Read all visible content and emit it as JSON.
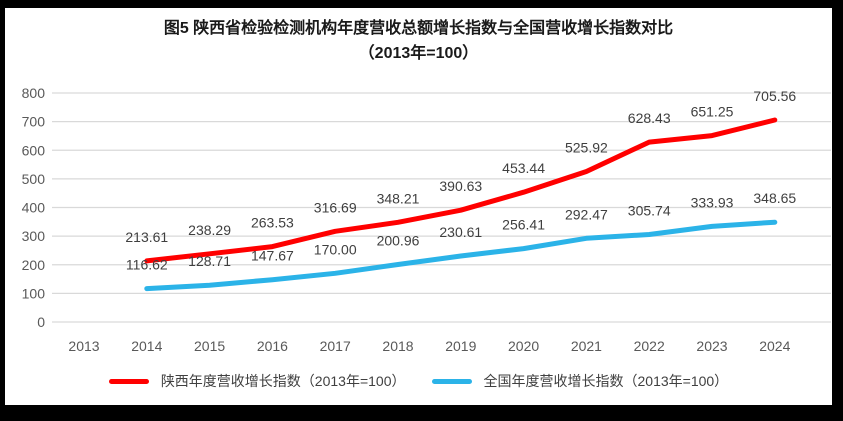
{
  "title": {
    "line1": "图5  陕西省检验检测机构年度营收总额增长指数与全国营收增长指数对比",
    "line2": "（2013年=100）"
  },
  "legend": {
    "items": [
      {
        "label": "陕西年度营收增长指数（2013年=100）",
        "color": "#ff0000"
      },
      {
        "label": "全国年度营收增长指数（2013年=100）",
        "color": "#2bb3e8"
      }
    ]
  },
  "colors": {
    "shaanxi_line": "#ff0000",
    "national_line": "#2bb3e8",
    "gridline": "#d9d9d9",
    "axis_text": "#595959",
    "data_label_text": "#3f3f3f",
    "frame": "#000000",
    "background": "#ffffff"
  },
  "chart_data": {
    "type": "line",
    "title": "图5  陕西省检验检测机构年度营收总额增长指数与全国营收增长指数对比（2013年=100）",
    "xlabel": "",
    "ylabel": "",
    "ylim": [
      0,
      800
    ],
    "ytick_step": 100,
    "yticks": [
      "0",
      "100",
      "200",
      "300",
      "400",
      "500",
      "600",
      "700",
      "800"
    ],
    "grid": true,
    "legend_position": "bottom",
    "categories": [
      "2013",
      "2014",
      "2015",
      "2016",
      "2017",
      "2018",
      "2019",
      "2020",
      "2021",
      "2022",
      "2023",
      "2024"
    ],
    "series": [
      {
        "key": "shaanxi",
        "name": "陕西年度营收增长指数（2013年=100）",
        "color": "#ff0000",
        "values": [
          null,
          213.61,
          238.29,
          263.53,
          316.69,
          348.21,
          390.63,
          453.44,
          525.92,
          628.43,
          651.25,
          705.56
        ],
        "labels": [
          null,
          "213.61",
          "238.29",
          "263.53",
          "316.69",
          "348.21",
          "390.63",
          "453.44",
          "525.92",
          "628.43",
          "651.25",
          "705.56"
        ]
      },
      {
        "key": "national",
        "name": "全国年度营收增长指数（2013年=100）",
        "color": "#2bb3e8",
        "values": [
          null,
          116.62,
          128.71,
          147.67,
          170.0,
          200.96,
          230.61,
          256.41,
          292.47,
          305.74,
          333.93,
          348.65
        ],
        "labels": [
          null,
          "116.62",
          "128.71",
          "147.67",
          "170.00",
          "200.96",
          "230.61",
          "256.41",
          "292.47",
          "305.74",
          "333.93",
          "348.65"
        ]
      }
    ]
  }
}
